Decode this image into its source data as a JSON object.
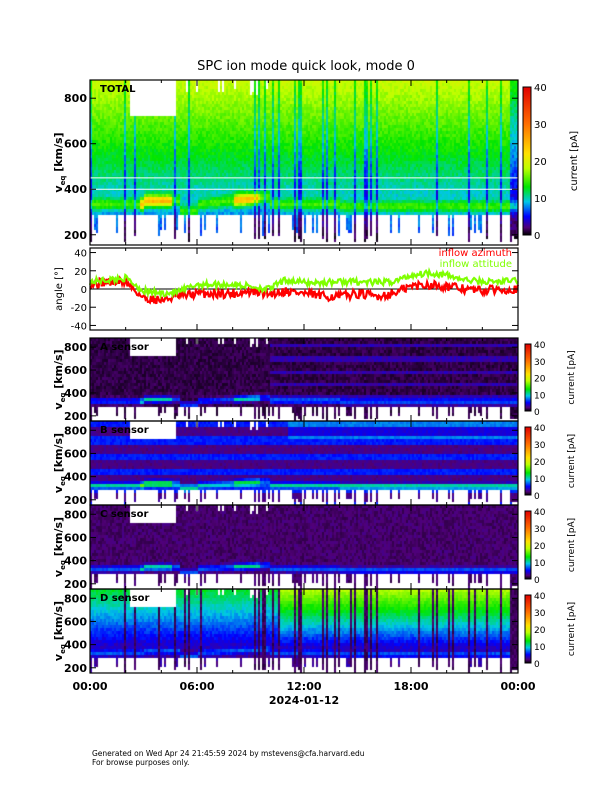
{
  "title": "SPC ion mode quick look, mode 0",
  "footer": {
    "line1": "Generated on Wed Apr 24 21:45:59 2024 by mstevens@cfa.harvard.edu",
    "line2": "For browse purposes only."
  },
  "colors": {
    "azimuth": "#ff0000",
    "attitude": "#7fff00"
  },
  "chart_data": [
    {
      "type": "heatmap",
      "panel": "TOTAL",
      "label": "TOTAL",
      "ylabel": "v_eq [km/s]",
      "yticks": [
        "200",
        "400",
        "600",
        "800"
      ],
      "ylim": [
        155,
        880
      ],
      "colorbar": {
        "label": "current [pA]",
        "ticks": [
          "0",
          "10",
          "20",
          "30",
          "40"
        ],
        "range": [
          0,
          40
        ]
      }
    },
    {
      "type": "line",
      "panel": "angle",
      "ylabel": "angle [°]",
      "yticks": [
        "-40",
        "-20",
        "0",
        "20",
        "40"
      ],
      "ylim": [
        -45,
        45
      ],
      "x_hours": [
        0,
        1,
        2,
        3,
        4,
        5,
        6,
        7,
        8,
        9,
        10,
        11,
        12,
        13,
        14,
        15,
        16,
        17,
        18,
        19,
        20,
        21,
        22,
        23,
        24
      ],
      "series": [
        {
          "name": "inflow azimuth",
          "values": [
            5,
            8,
            8,
            -10,
            -12,
            -8,
            -5,
            -5,
            -5,
            -3,
            -5,
            -2,
            -5,
            -8,
            -8,
            -5,
            -8,
            -5,
            3,
            5,
            3,
            0,
            -2,
            0,
            0
          ]
        },
        {
          "name": "inflow attitude",
          "values": [
            8,
            10,
            12,
            -2,
            -5,
            -3,
            5,
            5,
            5,
            3,
            0,
            10,
            7,
            7,
            8,
            8,
            7,
            8,
            15,
            18,
            15,
            10,
            8,
            8,
            10
          ]
        }
      ]
    },
    {
      "type": "heatmap",
      "panel": "A",
      "label": "A sensor",
      "ylabel": "v_eq [km/s]",
      "yticks": [
        "200",
        "400",
        "600",
        "800"
      ],
      "colorbar": {
        "label": "current [pA]",
        "ticks": [
          "0",
          "10",
          "20",
          "30",
          "40"
        ]
      }
    },
    {
      "type": "heatmap",
      "panel": "B",
      "label": "B sensor",
      "ylabel": "v_eq [km/s]",
      "yticks": [
        "200",
        "400",
        "600",
        "800"
      ],
      "colorbar": {
        "label": "current [pA]",
        "ticks": [
          "0",
          "10",
          "20",
          "30",
          "40"
        ]
      }
    },
    {
      "type": "heatmap",
      "panel": "C",
      "label": "C sensor",
      "ylabel": "v_eq [km/s]",
      "yticks": [
        "200",
        "400",
        "600",
        "800"
      ],
      "colorbar": {
        "label": "current [pA]",
        "ticks": [
          "0",
          "10",
          "20",
          "30",
          "40"
        ]
      }
    },
    {
      "type": "heatmap",
      "panel": "D",
      "label": "D sensor",
      "ylabel": "v_eq [km/s]",
      "yticks": [
        "200",
        "400",
        "600",
        "800"
      ],
      "colorbar": {
        "label": "current [pA]",
        "ticks": [
          "0",
          "10",
          "20",
          "30",
          "40"
        ]
      }
    }
  ],
  "xaxis": {
    "ticks": [
      "00:00",
      "06:00",
      "12:00",
      "18:00",
      "00:00"
    ],
    "date": "2024-01-12"
  }
}
